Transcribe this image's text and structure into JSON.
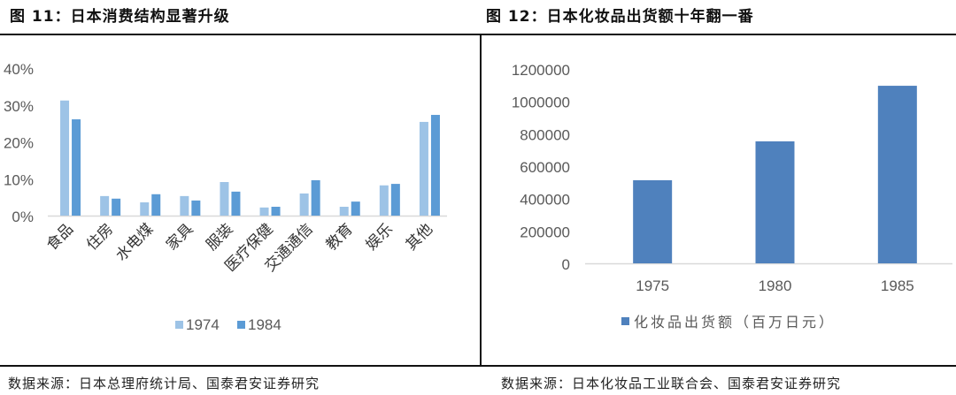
{
  "left_panel": {
    "title": "图 11：日本消费结构显著升级",
    "source": "数据来源：日本总理府统计局、国泰君安证券研究"
  },
  "right_panel": {
    "title": "图 12：日本化妆品出货额十年翻一番",
    "source": "数据来源：日本化妆品工业联合会、国泰君安证券研究"
  },
  "colors": {
    "series_1974": "#9DC3E6",
    "series_1984": "#5B9BD5",
    "series_cosmetics": "#4F81BD",
    "axis": "#D9D9D9",
    "tick_text": "#595959"
  },
  "chart_data": [
    {
      "type": "bar",
      "title": "日本消费结构显著升级",
      "categories": [
        "食品",
        "住房",
        "水电煤",
        "家具",
        "服装",
        "医疗保健",
        "交通通信",
        "教育",
        "娱乐",
        "其他"
      ],
      "series": [
        {
          "name": "1974",
          "values": [
            31.2,
            5.3,
            3.6,
            5.3,
            9.1,
            2.2,
            6.0,
            2.4,
            8.2,
            25.4
          ]
        },
        {
          "name": "1984",
          "values": [
            26.1,
            4.6,
            5.8,
            4.1,
            6.5,
            2.4,
            9.6,
            3.8,
            8.6,
            27.3
          ]
        }
      ],
      "xlabel": "",
      "ylabel": "",
      "ylim": [
        0,
        40
      ],
      "yticks": [
        "0%",
        "10%",
        "20%",
        "30%",
        "40%"
      ],
      "legend": [
        "1974",
        "1984"
      ],
      "legend_position": "bottom",
      "grid": false
    },
    {
      "type": "bar",
      "title": "日本化妆品出货额十年翻一番",
      "categories": [
        "1975",
        "1980",
        "1985"
      ],
      "series": [
        {
          "name": "化妆品出货额（百万日元）",
          "values": [
            513000,
            753000,
            1096000
          ]
        }
      ],
      "xlabel": "",
      "ylabel": "",
      "ylim": [
        0,
        1200000
      ],
      "yticks": [
        "0",
        "200000",
        "400000",
        "600000",
        "800000",
        "1000000",
        "1200000"
      ],
      "legend": [
        "化妆品出货额（百万日元）"
      ],
      "legend_position": "bottom",
      "grid": false
    }
  ]
}
